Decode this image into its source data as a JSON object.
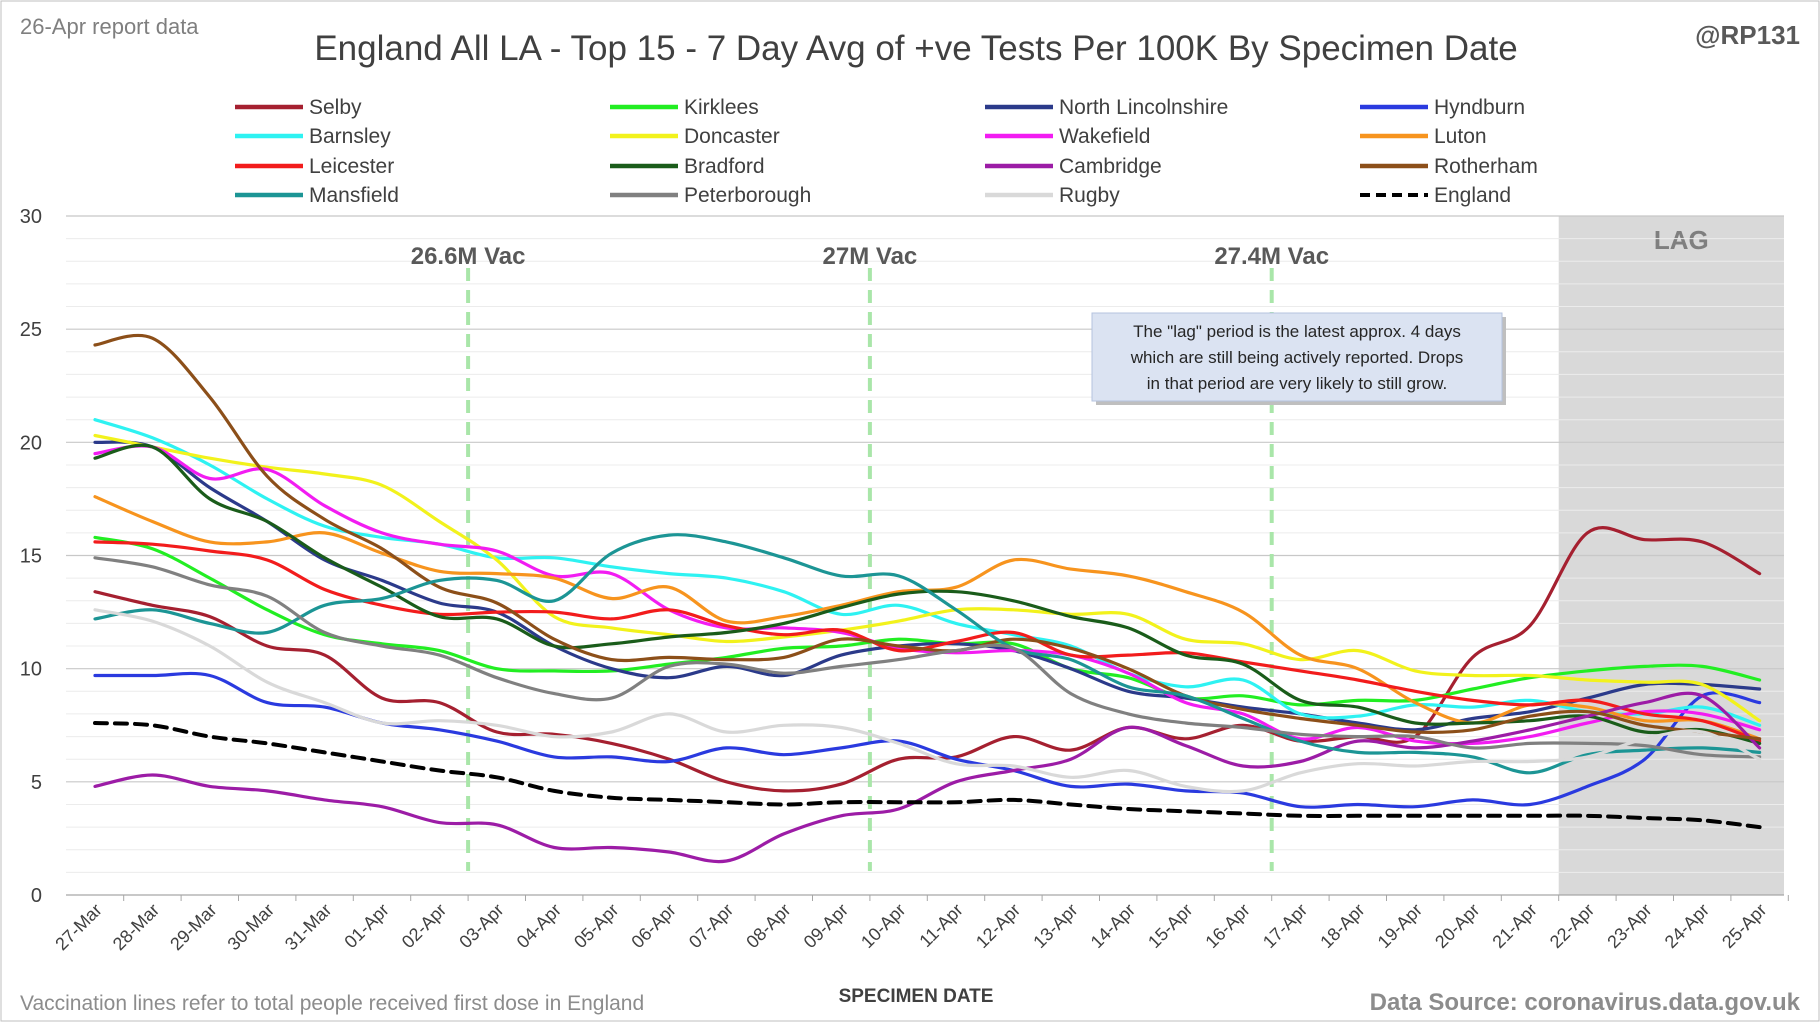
{
  "header": {
    "left_label": "26-Apr report data",
    "right_label": "@RP131"
  },
  "footer": {
    "note": "Vaccination lines refer to total people received first dose in England",
    "source": "Data Source: coronavirus.data.gov.uk"
  },
  "chart_data": {
    "type": "line",
    "title": "England All LA - Top 15 - 7 Day Avg of +ve Tests Per 100K By Specimen Date",
    "xlabel": "SPECIMEN DATE",
    "ylabel": "",
    "ylim": [
      0,
      30
    ],
    "yticks": [
      0,
      5,
      10,
      15,
      20,
      25,
      30
    ],
    "grid": true,
    "legend_position": "top",
    "x": [
      "27-Mar",
      "28-Mar",
      "29-Mar",
      "30-Mar",
      "31-Mar",
      "01-Apr",
      "02-Apr",
      "03-Apr",
      "04-Apr",
      "05-Apr",
      "06-Apr",
      "07-Apr",
      "08-Apr",
      "09-Apr",
      "10-Apr",
      "11-Apr",
      "12-Apr",
      "13-Apr",
      "14-Apr",
      "15-Apr",
      "16-Apr",
      "17-Apr",
      "18-Apr",
      "19-Apr",
      "20-Apr",
      "21-Apr",
      "22-Apr",
      "23-Apr",
      "24-Apr",
      "25-Apr"
    ],
    "lag_region": {
      "start": "21-Apr",
      "label": "LAG"
    },
    "vaccination_lines": [
      {
        "label": "26.6M Vac",
        "x": 6.5
      },
      {
        "label": "27M Vac",
        "x": 13.5
      },
      {
        "label": "27.4M Vac",
        "x": 20.5
      }
    ],
    "annotation": [
      "The \"lag\" period is the latest approx. 4 days",
      "which are still being actively reported.  Drops",
      "in that period are very likely to still grow."
    ],
    "series": [
      {
        "name": "Selby",
        "color": "#a52030",
        "values": [
          13.4,
          12.8,
          12.3,
          11.0,
          10.6,
          8.7,
          8.5,
          7.2,
          7.1,
          6.7,
          6.0,
          5.0,
          4.6,
          4.9,
          6.0,
          6.1,
          7.0,
          6.4,
          7.4,
          6.9,
          7.5,
          6.8,
          7.0,
          7.0,
          10.5,
          11.9,
          16.0,
          15.7,
          15.6,
          14.2
        ]
      },
      {
        "name": "Kirklees",
        "color": "#22ee22",
        "values": [
          15.8,
          15.3,
          14.0,
          12.6,
          11.5,
          11.1,
          10.8,
          10.0,
          9.9,
          9.9,
          10.2,
          10.5,
          10.9,
          11.0,
          11.3,
          11.1,
          11.1,
          10.0,
          9.6,
          8.7,
          8.8,
          8.4,
          8.6,
          8.6,
          9.1,
          9.6,
          9.9,
          10.1,
          10.1,
          9.5
        ]
      },
      {
        "name": "North Lincolnshire",
        "color": "#2b3a8a",
        "values": [
          20.0,
          19.8,
          18.0,
          16.5,
          14.8,
          13.9,
          12.9,
          12.5,
          11.0,
          10.0,
          9.6,
          10.1,
          9.7,
          10.6,
          11.0,
          11.1,
          10.8,
          10.0,
          9.0,
          8.7,
          8.3,
          8.0,
          7.6,
          7.3,
          7.8,
          8.1,
          8.7,
          9.3,
          9.3,
          9.1
        ]
      },
      {
        "name": "Hyndburn",
        "color": "#2a3adf",
        "values": [
          9.7,
          9.7,
          9.7,
          8.5,
          8.3,
          7.6,
          7.3,
          6.8,
          6.1,
          6.1,
          5.9,
          6.5,
          6.2,
          6.5,
          6.8,
          6.0,
          5.5,
          4.8,
          4.9,
          4.6,
          4.5,
          3.9,
          4.0,
          3.9,
          4.2,
          4.0,
          4.8,
          6.0,
          8.8,
          8.5
        ]
      },
      {
        "name": "Barnsley",
        "color": "#2ef2f2",
        "values": [
          21.0,
          20.2,
          19.0,
          17.5,
          16.3,
          15.8,
          15.5,
          14.9,
          14.9,
          14.5,
          14.2,
          14.0,
          13.4,
          12.4,
          12.8,
          12.0,
          11.5,
          11.0,
          9.8,
          9.2,
          9.5,
          8.0,
          7.9,
          8.4,
          8.3,
          8.6,
          8.1,
          8.0,
          8.3,
          7.5
        ]
      },
      {
        "name": "Doncaster",
        "color": "#f2f21c",
        "values": [
          20.3,
          19.8,
          19.3,
          18.9,
          18.6,
          18.1,
          16.5,
          14.8,
          12.3,
          11.8,
          11.5,
          11.2,
          11.4,
          11.7,
          12.1,
          12.6,
          12.6,
          12.4,
          12.4,
          11.3,
          11.1,
          10.4,
          10.8,
          9.9,
          9.7,
          9.7,
          9.5,
          9.4,
          9.3,
          7.7
        ]
      },
      {
        "name": "Wakefield",
        "color": "#f21cf2",
        "values": [
          19.5,
          19.8,
          18.4,
          18.8,
          17.2,
          16.0,
          15.5,
          15.2,
          14.1,
          14.2,
          12.6,
          11.8,
          11.8,
          11.6,
          10.9,
          10.7,
          10.8,
          10.6,
          9.8,
          8.5,
          8.0,
          6.9,
          7.4,
          6.8,
          6.7,
          7.0,
          7.6,
          8.1,
          8.0,
          7.3
        ]
      },
      {
        "name": "Luton",
        "color": "#f7941e",
        "values": [
          17.6,
          16.5,
          15.6,
          15.6,
          16.0,
          15.1,
          14.3,
          14.2,
          14.0,
          13.1,
          13.6,
          12.1,
          12.3,
          12.8,
          13.4,
          13.6,
          14.8,
          14.4,
          14.1,
          13.4,
          12.5,
          10.6,
          10.0,
          8.5,
          7.6,
          8.4,
          8.3,
          7.7,
          7.7,
          6.9
        ]
      },
      {
        "name": "Leicester",
        "color": "#f21c1c",
        "values": [
          15.6,
          15.5,
          15.2,
          14.8,
          13.5,
          12.8,
          12.4,
          12.5,
          12.5,
          12.2,
          12.6,
          11.9,
          11.5,
          11.7,
          10.8,
          11.2,
          11.6,
          10.6,
          10.6,
          10.7,
          10.3,
          9.9,
          9.5,
          9.0,
          8.6,
          8.4,
          8.6,
          8.0,
          7.7,
          6.8
        ]
      },
      {
        "name": "Bradford",
        "color": "#1a5c1a",
        "values": [
          19.3,
          19.8,
          17.5,
          16.5,
          14.9,
          13.6,
          12.3,
          12.2,
          11.0,
          11.1,
          11.4,
          11.6,
          12.0,
          12.7,
          13.3,
          13.4,
          13.0,
          12.3,
          11.8,
          10.6,
          10.2,
          8.6,
          8.3,
          7.6,
          7.6,
          7.7,
          7.9,
          7.2,
          7.3,
          6.7
        ]
      },
      {
        "name": "Cambridge",
        "color": "#9c1ca6",
        "values": [
          4.8,
          5.3,
          4.8,
          4.6,
          4.2,
          3.9,
          3.2,
          3.1,
          2.1,
          2.1,
          1.9,
          1.5,
          2.7,
          3.5,
          3.8,
          5.0,
          5.5,
          6.0,
          7.4,
          6.6,
          5.7,
          5.9,
          6.8,
          6.5,
          6.8,
          7.3,
          7.9,
          8.5,
          8.8,
          6.5
        ]
      },
      {
        "name": "Rotherham",
        "color": "#8c4f19",
        "values": [
          24.3,
          24.6,
          22.0,
          18.5,
          16.6,
          15.3,
          13.6,
          12.9,
          11.3,
          10.4,
          10.5,
          10.4,
          10.5,
          11.3,
          11.0,
          10.8,
          11.3,
          10.9,
          10.0,
          8.8,
          8.2,
          7.8,
          7.5,
          7.2,
          7.3,
          7.9,
          8.1,
          7.5,
          7.2,
          6.9
        ]
      },
      {
        "name": "Mansfield",
        "color": "#1c9595",
        "values": [
          12.2,
          12.6,
          12.0,
          11.6,
          12.8,
          13.1,
          13.9,
          13.9,
          13.0,
          15.1,
          15.9,
          15.6,
          14.9,
          14.1,
          14.1,
          12.6,
          10.9,
          10.4,
          9.2,
          8.8,
          7.8,
          6.8,
          6.3,
          6.3,
          6.1,
          5.4,
          6.2,
          6.4,
          6.5,
          6.3
        ]
      },
      {
        "name": "Peterborough",
        "color": "#808080",
        "values": [
          14.9,
          14.5,
          13.7,
          13.2,
          11.6,
          11.0,
          10.6,
          9.6,
          8.9,
          8.7,
          10.1,
          10.2,
          9.8,
          10.1,
          10.4,
          10.8,
          10.9,
          8.9,
          8.0,
          7.6,
          7.4,
          7.1,
          7.0,
          7.0,
          6.5,
          6.7,
          6.7,
          6.6,
          6.2,
          6.1
        ]
      },
      {
        "name": "Rugby",
        "color": "#d9d9d9",
        "values": [
          12.6,
          12.1,
          11.0,
          9.4,
          8.5,
          7.6,
          7.7,
          7.5,
          7.0,
          7.2,
          8.0,
          7.2,
          7.5,
          7.4,
          6.7,
          5.8,
          5.7,
          5.2,
          5.5,
          4.8,
          4.6,
          5.4,
          5.8,
          5.7,
          5.9,
          5.9,
          6.1,
          6.9,
          7.2,
          6.0
        ]
      },
      {
        "name": "England",
        "color": "#000000",
        "dashed": true,
        "values": [
          7.6,
          7.5,
          7.0,
          6.7,
          6.3,
          5.9,
          5.5,
          5.2,
          4.6,
          4.3,
          4.2,
          4.1,
          4.0,
          4.1,
          4.1,
          4.1,
          4.2,
          4.0,
          3.8,
          3.7,
          3.6,
          3.5,
          3.5,
          3.5,
          3.5,
          3.5,
          3.5,
          3.4,
          3.3,
          3.0
        ]
      }
    ]
  }
}
